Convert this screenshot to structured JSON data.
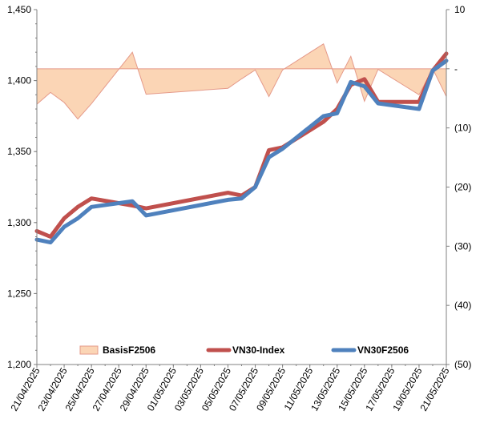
{
  "chart_data": {
    "type": "line",
    "x": [
      "21/04/2025",
      "22/04/2025",
      "23/04/2025",
      "24/04/2025",
      "25/04/2025",
      "28/04/2025",
      "29/04/2025",
      "05/05/2025",
      "06/05/2025",
      "07/05/2025",
      "08/05/2025",
      "09/05/2025",
      "12/05/2025",
      "13/05/2025",
      "14/05/2025",
      "15/05/2025",
      "16/05/2025",
      "19/05/2025",
      "20/05/2025",
      "21/05/2025"
    ],
    "x_tick_labels": [
      "21/04/2025",
      "23/04/2025",
      "25/04/2025",
      "27/04/2025",
      "29/04/2025",
      "01/05/2025",
      "03/05/2025",
      "05/05/2025",
      "07/05/2025",
      "09/05/2025",
      "11/05/2025",
      "13/05/2025",
      "15/05/2025",
      "17/05/2025",
      "19/05/2025",
      "21/05/2025"
    ],
    "y_left": {
      "lim": [
        1200,
        1450
      ],
      "ticks": [
        "1,200",
        "1,250",
        "1,300",
        "1,350",
        "1,400",
        "1,450"
      ]
    },
    "y_right": {
      "lim": [
        -50,
        10
      ],
      "ticks": [
        "10",
        "-",
        "(10)",
        "(20)",
        "(30)",
        "(40)",
        "(50)"
      ]
    },
    "series": [
      {
        "name": "BasisF2506",
        "kind": "area",
        "axis": "right",
        "color_fill": "#fbd5b5",
        "color_line": "#e59a8a",
        "values": [
          -6.0,
          -4.0,
          -5.7,
          -8.5,
          -5.9,
          2.8,
          -4.3,
          -3.3,
          -1.7,
          -0.2,
          -4.7,
          -0.2,
          4.2,
          -2.4,
          2.1,
          -5.5,
          -0.1,
          -4.4,
          0.0,
          -4.7
        ]
      },
      {
        "name": "VN30-Index",
        "kind": "line",
        "axis": "left",
        "color": "#c0504d",
        "values": [
          1294,
          1290,
          1303,
          1311,
          1317,
          1312,
          1310,
          1321,
          1319,
          1325,
          1351,
          1353,
          1371,
          1380,
          1397,
          1401,
          1385,
          1385,
          1407,
          1419
        ]
      },
      {
        "name": "VN30F2506",
        "kind": "line",
        "axis": "left",
        "color": "#4f81bd",
        "values": [
          1288,
          1286,
          1297,
          1303,
          1311,
          1315,
          1305,
          1316,
          1317,
          1325,
          1346,
          1352,
          1375,
          1377,
          1399,
          1396,
          1384,
          1380,
          1407,
          1414
        ]
      }
    ],
    "legend": {
      "placement": "bottom-inside"
    },
    "grid": false
  }
}
